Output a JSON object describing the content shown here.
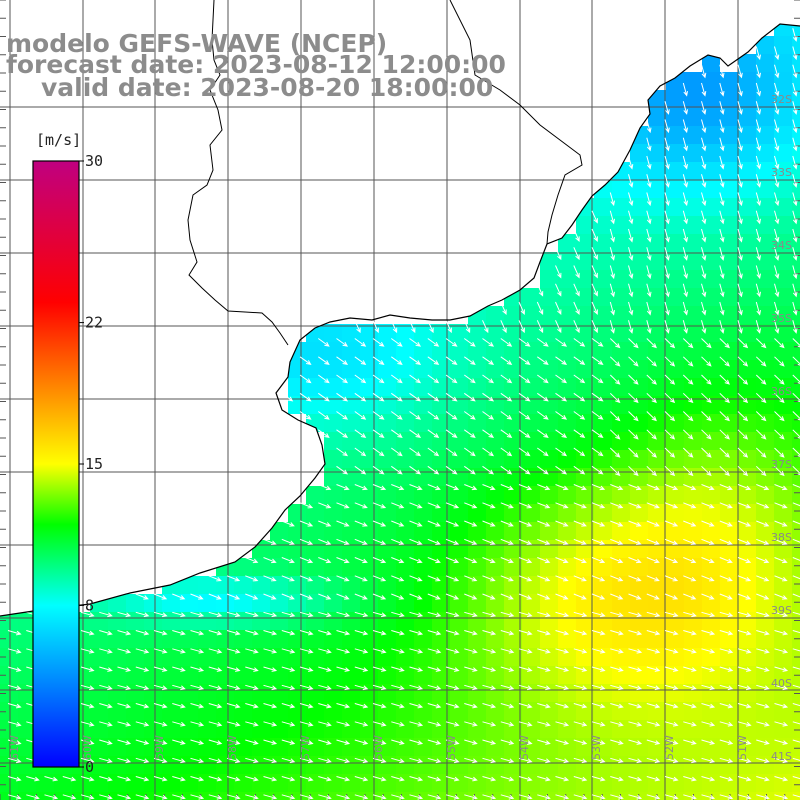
{
  "title": {
    "line1": "modelo GEFS-WAVE (NCEP)",
    "line2": "forecast date: 2023-08-12 12:00:00",
    "line3": "valid date: 2023-08-20 18:00:00"
  },
  "colorbar": {
    "unit": "[m/s]",
    "min": 0,
    "max": 30,
    "ticks": [
      {
        "value": 30,
        "label": "30"
      },
      {
        "value": 22,
        "label": "22"
      },
      {
        "value": 15,
        "label": "15"
      },
      {
        "value": 8,
        "label": "8"
      },
      {
        "value": 0,
        "label": "0"
      }
    ],
    "stops": [
      {
        "value": 0,
        "color": "#0000ff"
      },
      {
        "value": 4,
        "color": "#0080ff"
      },
      {
        "value": 8,
        "color": "#00ffff"
      },
      {
        "value": 12,
        "color": "#00ff00"
      },
      {
        "value": 15,
        "color": "#ffff00"
      },
      {
        "value": 19,
        "color": "#ff8000"
      },
      {
        "value": 23,
        "color": "#ff0000"
      },
      {
        "value": 30,
        "color": "#c00080"
      }
    ]
  },
  "map": {
    "lat_labels": [
      "32S",
      "33S",
      "34S",
      "35S",
      "36S",
      "37S",
      "38S",
      "39S",
      "40S",
      "41S"
    ],
    "lon_labels": [
      "57W",
      "56W",
      "55W",
      "54W",
      "53W",
      "52W",
      "51W"
    ],
    "left_lon_labels": [
      "61W",
      "60W",
      "59W",
      "58W"
    ],
    "land_color": "#ffffff",
    "coast_color": "#000000",
    "grid_color": "#555555",
    "arrow_color": "#ffffff"
  }
}
